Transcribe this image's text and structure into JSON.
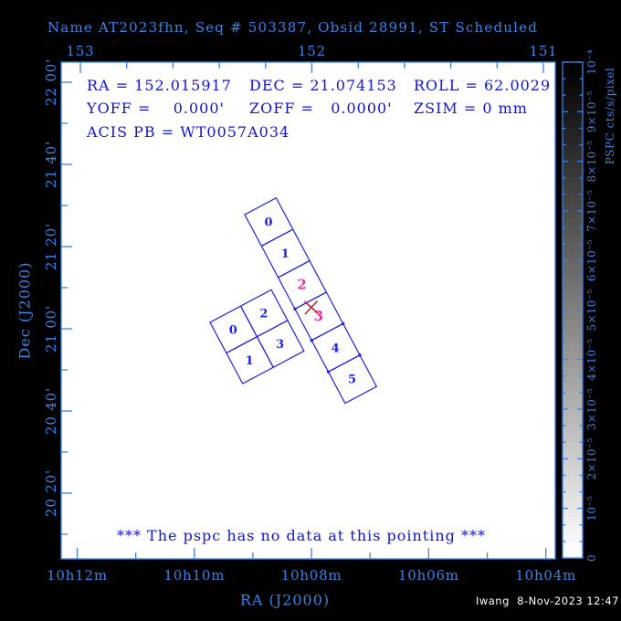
{
  "title": "Name AT2023fhn, Seq # 503387, Obsid 28991, ST Scheduled",
  "info": {
    "ra": "RA = 152.015917",
    "dec": "DEC = 21.074153",
    "roll": "ROLL = 62.0029",
    "yoff": "YOFF =    0.000'",
    "zoff": "ZOFF =   0.0000'",
    "zsim": "ZSIM = 0 mm",
    "acis_pb": "ACIS PB = WT0057A034"
  },
  "message": "*** The pspc has no data at this pointing ***",
  "footer": "Iwang  8-Nov-2023 12:47",
  "axes": {
    "top": {
      "labels": [
        "153",
        "152",
        "151"
      ]
    },
    "bottom": {
      "labels": [
        "10h12m",
        "10h10m",
        "10h08m",
        "10h06m",
        "10h04m"
      ],
      "title": "RA (J2000)"
    },
    "left": {
      "labels": [
        "22 00'",
        "21 40'",
        "21 20'",
        "21 00'",
        "20 40'",
        "20 20'"
      ],
      "title": "Dec (J2000)"
    }
  },
  "colorbar": {
    "title": "PSPC cts/s/pixel",
    "labels": [
      "0",
      "10⁻⁵",
      "2×10⁻⁵",
      "3×10⁻⁵",
      "4×10⁻⁵",
      "5×10⁻⁵",
      "6×10⁻⁵",
      "7×10⁻⁵",
      "8×10⁻⁵",
      "9×10⁻⁵",
      "10⁻⁴"
    ]
  },
  "chips": {
    "acis_s": {
      "labels": [
        "0",
        "1",
        "2",
        "3",
        "4",
        "5"
      ],
      "highlight": [
        2,
        3
      ]
    },
    "acis_i": {
      "labels": [
        "0",
        "2",
        "1",
        "3"
      ]
    }
  },
  "colors": {
    "page_bg": "#000000",
    "plot_bg": "#ffffff",
    "accent_blue": "#3b82e6",
    "text_navy": "#1414cd",
    "chip_blue": "#2222dd",
    "highlight_magenta": "#ee2f9e",
    "marker_red": "#bb2233",
    "footer_white": "#ffffff"
  },
  "chart_data": {
    "type": "sky-footprint-plot",
    "title": "Name AT2023fhn, Seq # 503387, Obsid 28991, ST Scheduled",
    "xlabel": "RA (J2000)",
    "ylabel": "Dec (J2000)",
    "x_ticks_bottom_hms": [
      "10h12m",
      "10h10m",
      "10h08m",
      "10h06m",
      "10h04m"
    ],
    "x_ticks_top_deg": [
      153,
      152,
      151
    ],
    "y_ticks_dec": [
      "22 00'",
      "21 40'",
      "21 20'",
      "21 00'",
      "20 40'",
      "20 20'"
    ],
    "x_range_deg_approx": [
      153.08,
      150.95
    ],
    "y_range_deg_approx": [
      20.07,
      22.08
    ],
    "pointing": {
      "ra_deg": 152.015917,
      "dec_deg": 21.074153,
      "roll_deg": 62.0029,
      "yoff_arcmin": 0.0,
      "zoff_arcmin": 0.0,
      "zsim_mm": 0,
      "acis_pb": "WT0057A034"
    },
    "instrument_footprints": [
      {
        "name": "ACIS-S",
        "shape": "1x6 strip rotated by roll",
        "chips": [
          "0",
          "1",
          "2",
          "3",
          "4",
          "5"
        ],
        "highlighted_chips": [
          "2",
          "3"
        ]
      },
      {
        "name": "ACIS-I",
        "shape": "2x2 array rotated by roll",
        "chips": [
          "0",
          "2",
          "1",
          "3"
        ]
      }
    ],
    "aimpoint_marker": {
      "symbol": "X",
      "color": "#bb2233",
      "located_on_chip": "ACIS-S chip 3",
      "at_pointing_ra_dec": true
    },
    "colorbar": {
      "label": "PSPC cts/s/pixel",
      "min": 0,
      "max": 0.0001,
      "tick_labels": [
        "0",
        "10⁻⁵",
        "2×10⁻⁵",
        "3×10⁻⁵",
        "4×10⁻⁵",
        "5×10⁻⁵",
        "6×10⁻⁵",
        "7×10⁻⁵",
        "8×10⁻⁵",
        "9×10⁻⁵",
        "10⁻⁴"
      ],
      "gradient": "black at max (top) to white at 0 (bottom)"
    },
    "annotation": "*** The pspc has no data at this pointing ***",
    "grid": false,
    "legend": false
  }
}
